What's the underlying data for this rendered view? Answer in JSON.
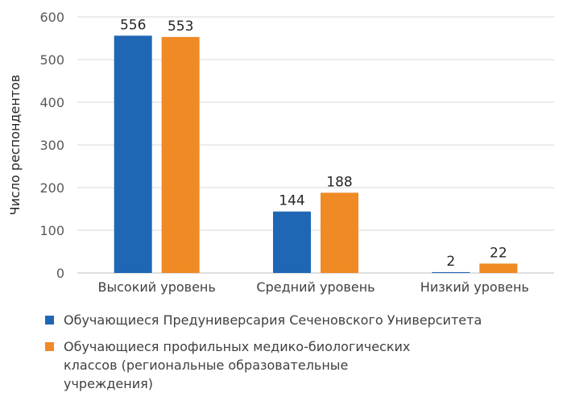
{
  "chart_data": {
    "type": "bar",
    "categories": [
      "Высокий уровень",
      "Средний уровень",
      "Низкий уровень"
    ],
    "series": [
      {
        "name": "Обучающиеся Предуниверсария Сеченовского Университета",
        "values": [
          556,
          144,
          2
        ],
        "color": "#1f66b5"
      },
      {
        "name": "Обучающиеся профильных медико-биологических классов (региональные образовательные учреждения)",
        "values": [
          553,
          188,
          22
        ],
        "color": "#f08a24"
      }
    ],
    "ylabel": "Число респондентов",
    "ylim": [
      0,
      600
    ],
    "yticks": [
      0,
      100,
      200,
      300,
      400,
      500,
      600
    ],
    "grid": true,
    "legend_position": "bottom"
  }
}
